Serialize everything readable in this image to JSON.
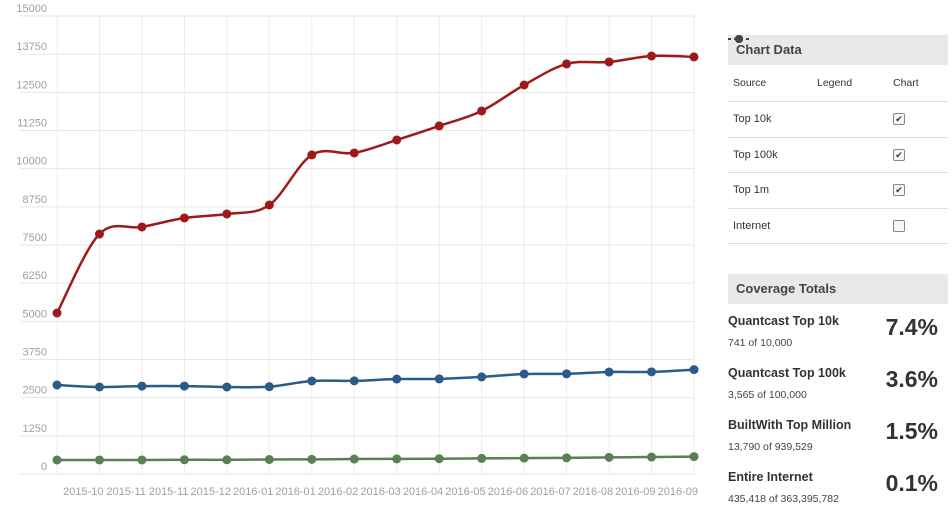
{
  "chart_data": {
    "type": "line",
    "categories": [
      null,
      "2015-10",
      "2015-11",
      "2015-11",
      "2015-12",
      "2016-01",
      "2016-01",
      "2016-02",
      "2016-03",
      "2016-04",
      "2016-05",
      "2016-06",
      "2016-07",
      "2016-08",
      "2016-09",
      "2016-09"
    ],
    "series": [
      {
        "name": "Top 10k",
        "color": "#5b7f55",
        "checked": true,
        "values": [
          460,
          460,
          460,
          465,
          465,
          475,
          480,
          490,
          495,
          500,
          510,
          520,
          530,
          545,
          555,
          570
        ]
      },
      {
        "name": "Top 100k",
        "color": "#2a5b8b",
        "checked": true,
        "values": [
          2915,
          2850,
          2880,
          2880,
          2850,
          2860,
          3045,
          3050,
          3110,
          3115,
          3180,
          3275,
          3280,
          3340,
          3345,
          3420
        ]
      },
      {
        "name": "Top 1m",
        "color": "#9e1a1a",
        "checked": true,
        "values": [
          5273,
          7860,
          8090,
          8385,
          8516,
          8810,
          10450,
          10515,
          10940,
          11400,
          11890,
          12740,
          13430,
          13495,
          13690,
          13660
        ]
      }
    ],
    "ylim": [
      0,
      15000
    ],
    "yticks": [
      0,
      1250,
      2500,
      3750,
      5000,
      6250,
      7500,
      8750,
      10000,
      11250,
      12500,
      13750,
      15000
    ],
    "grid": true
  },
  "sidebar": {
    "chart_data_panel": {
      "title": "Chart Data",
      "headers": [
        "Source",
        "Legend",
        "Chart"
      ],
      "extra_rows": [
        {
          "source": "Internet",
          "color": "#444444",
          "checked": false
        }
      ]
    },
    "coverage_panel": {
      "title": "Coverage Totals",
      "rows": [
        {
          "name": "Quantcast Top 10k",
          "detail": "741 of 10,000",
          "percent": "7.4%"
        },
        {
          "name": "Quantcast Top 100k",
          "detail": "3,565 of 100,000",
          "percent": "3.6%"
        },
        {
          "name": "BuiltWith Top Million",
          "detail": "13,790 of 939,529",
          "percent": "1.5%"
        },
        {
          "name": "Entire Internet",
          "detail": "435,418 of 363,395,782",
          "percent": "0.1%"
        }
      ]
    }
  }
}
